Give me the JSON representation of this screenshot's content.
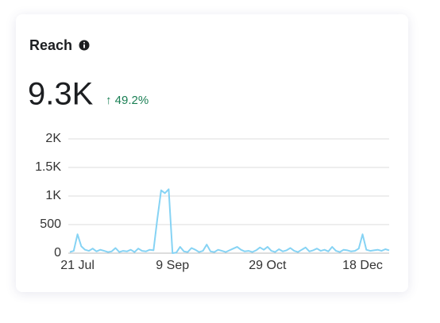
{
  "card": {
    "title": "Reach",
    "value": "9.3K",
    "change": "↑ 49.2%"
  },
  "chart_data": {
    "type": "line",
    "color": "#86d3f4",
    "categories": [
      null,
      null,
      "21 Jul",
      null,
      null,
      null,
      null,
      null,
      null,
      null,
      null,
      null,
      null,
      null,
      null,
      null,
      null,
      null,
      null,
      null,
      null,
      null,
      null,
      null,
      null,
      null,
      null,
      "9 Sep",
      null,
      null,
      null,
      null,
      null,
      null,
      null,
      null,
      null,
      null,
      null,
      null,
      null,
      null,
      null,
      null,
      null,
      null,
      null,
      null,
      null,
      null,
      null,
      null,
      "29 Oct",
      null,
      null,
      null,
      null,
      null,
      null,
      null,
      null,
      null,
      null,
      null,
      null,
      null,
      null,
      null,
      null,
      null,
      null,
      null,
      null,
      null,
      null,
      null,
      null,
      "18 Dec",
      null,
      null,
      null,
      null,
      null,
      null,
      null
    ],
    "values": [
      20,
      40,
      330,
      120,
      60,
      40,
      80,
      30,
      60,
      40,
      20,
      30,
      90,
      20,
      40,
      30,
      60,
      20,
      80,
      40,
      30,
      60,
      50,
      600,
      1100,
      1050,
      1120,
      0,
      10,
      110,
      30,
      20,
      90,
      60,
      20,
      40,
      150,
      30,
      20,
      60,
      40,
      20,
      50,
      80,
      110,
      60,
      30,
      40,
      20,
      50,
      100,
      60,
      110,
      40,
      20,
      70,
      30,
      50,
      90,
      40,
      20,
      60,
      100,
      30,
      50,
      80,
      40,
      60,
      30,
      110,
      40,
      20,
      60,
      50,
      30,
      40,
      80,
      330,
      60,
      40,
      50,
      60,
      40,
      70,
      50
    ],
    "ylim": [
      0,
      2000
    ],
    "yticks": [
      0,
      500,
      {
        "value": 1000,
        "label": "1K"
      },
      {
        "value": 1500,
        "label": "1.5K"
      },
      {
        "value": 2000,
        "label": "2K"
      }
    ],
    "grid": true
  }
}
